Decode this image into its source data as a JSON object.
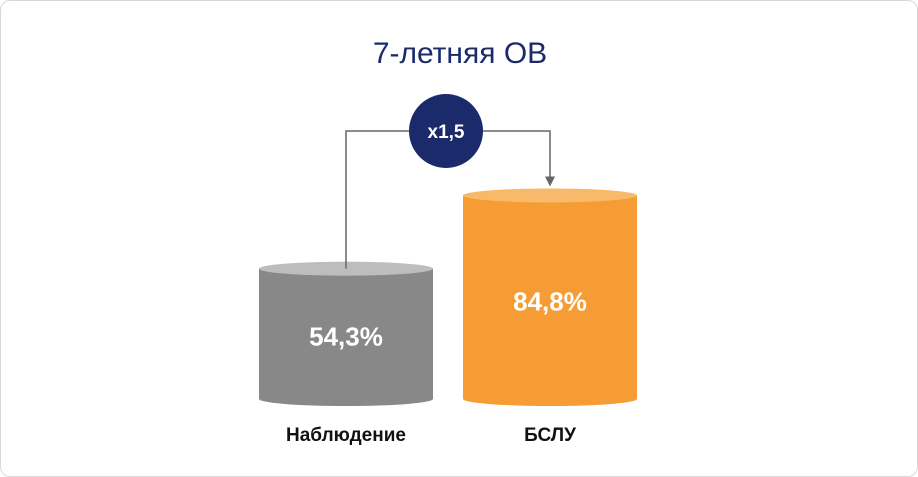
{
  "chart_data": {
    "type": "bar",
    "title": "7-летняя ОВ",
    "categories": [
      "Наблюдение",
      "БСЛУ"
    ],
    "values": [
      54.3,
      84.8
    ],
    "value_labels": [
      "54,3%",
      "84,8%"
    ],
    "unit": "%",
    "ylim": [
      0,
      100
    ],
    "annotation": "x1,5",
    "colors": {
      "bar_1": "#888888",
      "bar_1_top": "#bdbdbd",
      "bar_2": "#f59c34",
      "bar_2_top": "#f8b96a",
      "title": "#1b2a6b",
      "badge": "#1b2a6b",
      "connector": "#666666"
    }
  }
}
